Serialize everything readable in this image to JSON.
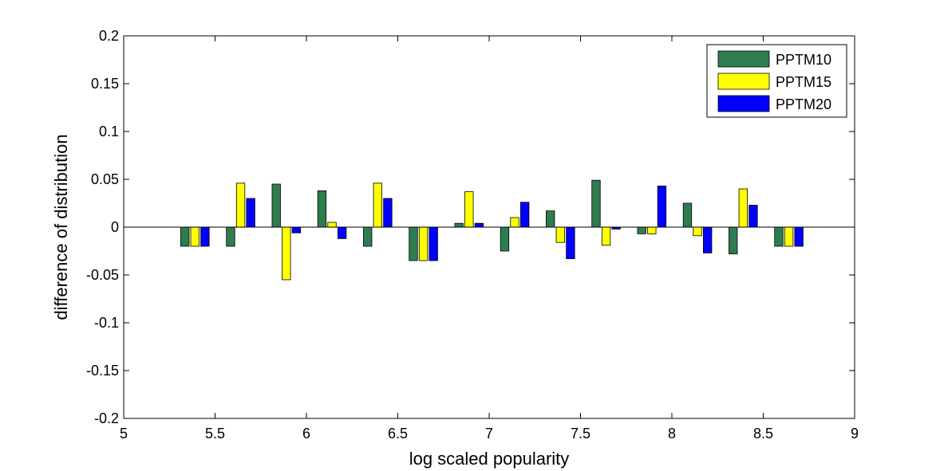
{
  "chart_data": {
    "type": "bar",
    "xlabel": "log scaled popularity",
    "ylabel": "difference of distribution",
    "xlim": [
      5,
      9
    ],
    "ylim": [
      -0.2,
      0.2
    ],
    "x_ticks": [
      "5",
      "5.5",
      "6",
      "6.5",
      "7",
      "7.5",
      "8",
      "8.5",
      "9"
    ],
    "y_ticks": [
      "-0.2",
      "-0.15",
      "-0.1",
      "-0.05",
      "0",
      "0.05",
      "0.1",
      "0.15",
      "0.2"
    ],
    "grid": false,
    "legend_position": "top-right",
    "categories": [
      5.39,
      5.64,
      5.89,
      6.14,
      6.39,
      6.64,
      6.89,
      7.14,
      7.39,
      7.64,
      7.89,
      8.14,
      8.39,
      8.64
    ],
    "series": [
      {
        "name": "PPTM10",
        "color": "#2e7d4f",
        "values": [
          -0.02,
          -0.02,
          0.045,
          0.038,
          -0.02,
          -0.035,
          0.004,
          -0.025,
          0.017,
          0.049,
          -0.007,
          0.025,
          -0.028,
          -0.02
        ]
      },
      {
        "name": "PPTM15",
        "color": "#ffff00",
        "values": [
          -0.02,
          0.046,
          -0.055,
          0.005,
          0.046,
          -0.035,
          0.037,
          0.01,
          -0.016,
          -0.019,
          -0.007,
          -0.009,
          0.04,
          -0.02
        ]
      },
      {
        "name": "PPTM20",
        "color": "#0000ff",
        "values": [
          -0.02,
          0.03,
          -0.006,
          -0.012,
          0.03,
          -0.035,
          0.004,
          0.026,
          -0.033,
          -0.002,
          0.043,
          -0.027,
          0.023,
          -0.02
        ]
      }
    ]
  }
}
